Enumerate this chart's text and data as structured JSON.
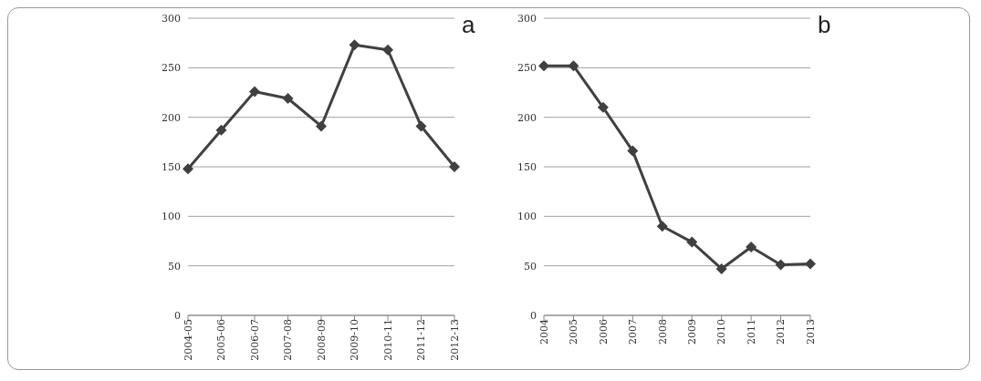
{
  "chart_data": [
    {
      "type": "line",
      "title": "a",
      "categories": [
        "2004-05",
        "2005-06",
        "2006-07",
        "2007-08",
        "2008-09",
        "2009-10",
        "2010-11",
        "2011-12",
        "2012-13"
      ],
      "series": [
        {
          "color": "#404040",
          "values": [
            148,
            187,
            226,
            219,
            191,
            273,
            268,
            191,
            150
          ]
        }
      ],
      "ylim": [
        0,
        300
      ],
      "yticks": [
        0,
        50,
        100,
        150,
        200,
        250,
        300
      ],
      "grid": "y",
      "legend": false,
      "marker": "diamond",
      "line_style": "solid"
    },
    {
      "type": "line",
      "title": "b",
      "categories": [
        "2004",
        "2005",
        "2006",
        "2007",
        "2008",
        "2009",
        "2010",
        "2011",
        "2012",
        "2013"
      ],
      "series": [
        {
          "color": "#404040",
          "values": [
            252,
            252,
            210,
            166,
            90,
            74,
            47,
            69,
            51,
            52
          ]
        }
      ],
      "ylim": [
        0,
        300
      ],
      "yticks": [
        0,
        50,
        100,
        150,
        200,
        250,
        300
      ],
      "grid": "y",
      "legend": false,
      "marker": "diamond",
      "line_style": "solid"
    }
  ]
}
